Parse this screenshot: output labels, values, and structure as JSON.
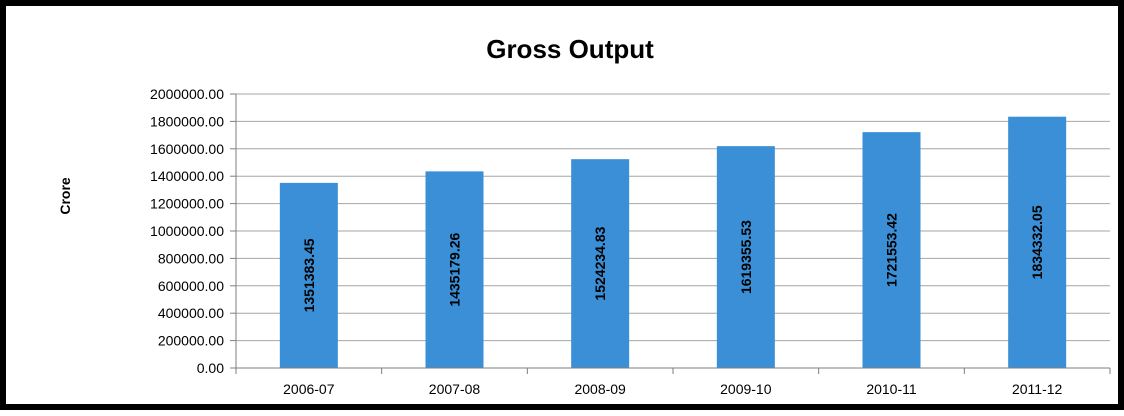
{
  "chart_data": {
    "type": "bar",
    "title": "Gross Output",
    "ylabel": "Crore",
    "xlabel": "",
    "categories": [
      "2006-07",
      "2007-08",
      "2008-09",
      "2009-10",
      "2010-11",
      "2011-12"
    ],
    "values": [
      1351383.45,
      1435179.26,
      1524234.83,
      1619355.53,
      1721553.42,
      1834332.05
    ],
    "value_labels": [
      "1351383.45",
      "1435179.26",
      "1524234.83",
      "1619355.53",
      "1721553.42",
      "1834332.05"
    ],
    "ylim": [
      0,
      2000000
    ],
    "yticks": [
      0,
      200000,
      400000,
      600000,
      800000,
      1000000,
      1200000,
      1400000,
      1600000,
      1800000,
      2000000
    ],
    "ytick_labels": [
      "0.00",
      "200000.00",
      "400000.00",
      "600000.00",
      "800000.00",
      "1000000.00",
      "1200000.00",
      "1400000.00",
      "1600000.00",
      "1800000.00",
      "2000000.00"
    ],
    "grid": true,
    "bar_color": "#3a8fd6",
    "grid_color": "#a6a6a6",
    "frame_color": "#000000"
  }
}
